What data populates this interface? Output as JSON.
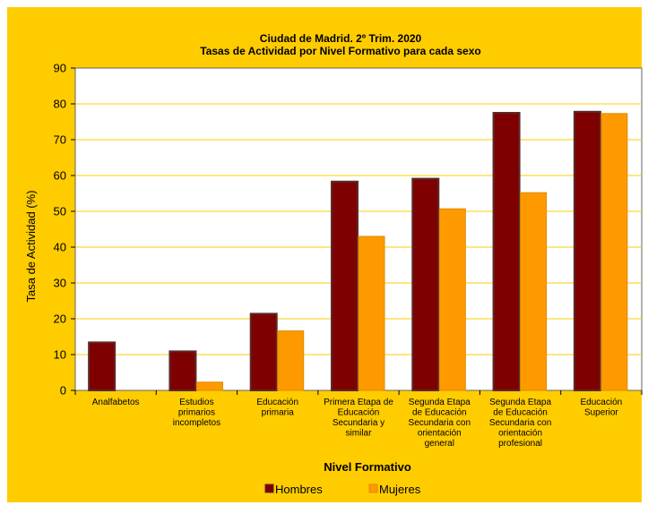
{
  "chart_data": {
    "type": "bar",
    "title_lines": [
      "Ciudad de Madrid. 2º Trim. 2020",
      "Tasas de Actividad por Nivel Formativo para cada sexo"
    ],
    "xlabel": "Nivel Formativo",
    "ylabel": "Tasa de Actividad (%)",
    "ylim": [
      0,
      90
    ],
    "yticks": [
      "0",
      "10",
      "20",
      "30",
      "40",
      "50",
      "60",
      "70",
      "80",
      "90"
    ],
    "grid": true,
    "legend_position": "bottom",
    "categories": [
      [
        "Analfabetos"
      ],
      [
        "Estudios",
        "primarios",
        "incompletos"
      ],
      [
        "Educación",
        "primaria"
      ],
      [
        "Primera Etapa de",
        "Educación",
        "Secundaria y",
        "similar"
      ],
      [
        "Segunda Etapa",
        "de Educación",
        "Secundaria con",
        "orientación",
        "general"
      ],
      [
        "Segunda Etapa",
        "de Educación",
        "Secundaria con",
        "orientación",
        "profesional"
      ],
      [
        "Educación",
        "Superior"
      ]
    ],
    "series": [
      {
        "name": "Hombres",
        "color": "#7F0000",
        "values": [
          13.4,
          10.9,
          21.4,
          58.3,
          59.1,
          77.5,
          77.8
        ]
      },
      {
        "name": "Mujeres",
        "color": "#FF9900",
        "values": [
          0,
          2.3,
          16.6,
          43.0,
          50.7,
          55.2,
          77.3
        ]
      }
    ],
    "colors": {
      "background": "#FFCC00",
      "plot": "#FFFFFF",
      "grid": "#FFCC00",
      "axis": "#666666"
    }
  }
}
